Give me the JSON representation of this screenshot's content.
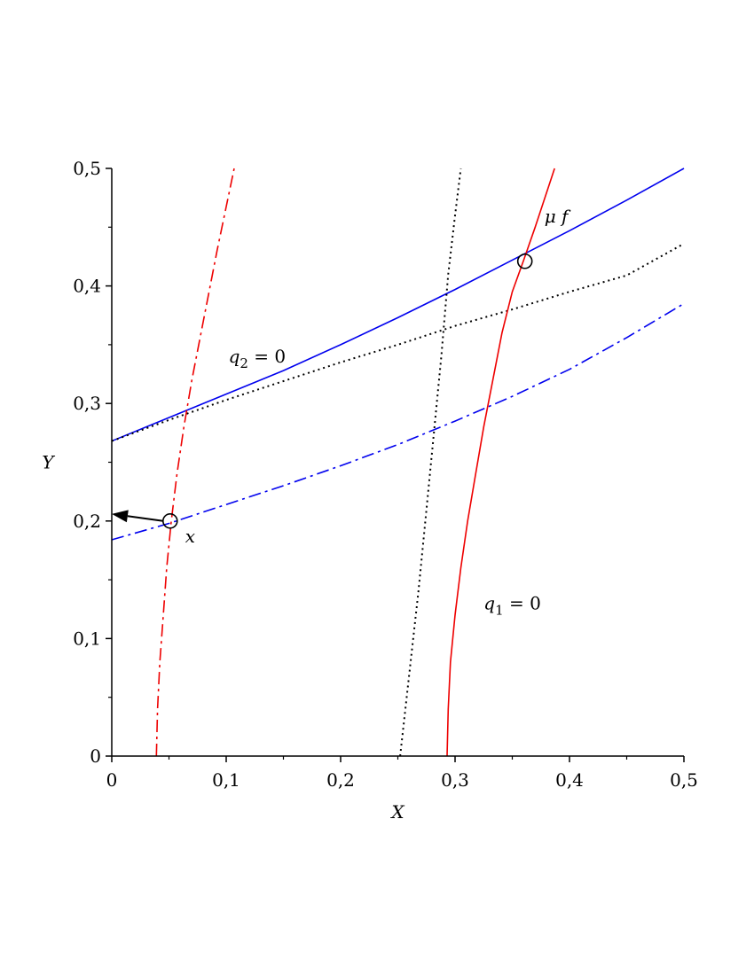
{
  "chart_data": {
    "type": "line",
    "xlabel": "X",
    "ylabel": "Y",
    "xlim": [
      0,
      0.5
    ],
    "ylim": [
      0,
      0.5
    ],
    "xticks": [
      0,
      0.1,
      0.2,
      0.3,
      0.4,
      0.5
    ],
    "yticks": [
      0,
      0.1,
      0.2,
      0.3,
      0.4,
      0.5
    ],
    "xtick_labels": [
      "0",
      "0,1",
      "0,2",
      "0,3",
      "0,4",
      "0,5"
    ],
    "ytick_labels": [
      "0",
      "0,1",
      "0,2",
      "0,3",
      "0,4",
      "0,5"
    ],
    "grid": false,
    "series": [
      {
        "color": "#0000ee",
        "dash": "solid",
        "x": [
          0,
          0.05,
          0.1,
          0.15,
          0.2,
          0.25,
          0.3,
          0.35,
          0.4,
          0.45,
          0.5
        ],
        "y": [
          0.268,
          0.288,
          0.308,
          0.328,
          0.35,
          0.373,
          0.397,
          0.422,
          0.447,
          0.473,
          0.5
        ]
      },
      {
        "color": "#0000ee",
        "dash": "dashdot",
        "x": [
          0,
          0.05,
          0.1,
          0.15,
          0.2,
          0.25,
          0.3,
          0.35,
          0.4,
          0.45,
          0.5
        ],
        "y": [
          0.184,
          0.198,
          0.214,
          0.23,
          0.247,
          0.265,
          0.285,
          0.306,
          0.329,
          0.356,
          0.385
        ]
      },
      {
        "color": "#000000",
        "dash": "dotted",
        "x": [
          0,
          0.05,
          0.1,
          0.15,
          0.2,
          0.25,
          0.3,
          0.35,
          0.4,
          0.45,
          0.5
        ],
        "y": [
          0.268,
          0.286,
          0.303,
          0.319,
          0.335,
          0.35,
          0.366,
          0.38,
          0.395,
          0.409,
          0.436
        ]
      },
      {
        "color": "#ee0000",
        "dash": "solid",
        "x": [
          0.293,
          0.294,
          0.296,
          0.3,
          0.305,
          0.311,
          0.318,
          0.325,
          0.333,
          0.341,
          0.35,
          0.36,
          0.37,
          0.387
        ],
        "y": [
          0.0,
          0.04,
          0.08,
          0.12,
          0.16,
          0.2,
          0.24,
          0.28,
          0.32,
          0.36,
          0.395,
          0.422,
          0.45,
          0.5
        ]
      },
      {
        "color": "#ee0000",
        "dash": "dashdot",
        "x": [
          0.039,
          0.04,
          0.042,
          0.045,
          0.048,
          0.052,
          0.057,
          0.063,
          0.07,
          0.08,
          0.092,
          0.107
        ],
        "y": [
          0.0,
          0.04,
          0.08,
          0.12,
          0.16,
          0.2,
          0.24,
          0.28,
          0.32,
          0.37,
          0.43,
          0.5
        ]
      },
      {
        "color": "#000000",
        "dash": "dotted",
        "x": [
          0.252,
          0.26,
          0.268,
          0.275,
          0.282,
          0.288,
          0.294,
          0.3,
          0.305
        ],
        "y": [
          0.0,
          0.07,
          0.14,
          0.21,
          0.28,
          0.34,
          0.41,
          0.46,
          0.5
        ]
      }
    ],
    "points": [
      {
        "x": 0.051,
        "y": 0.2,
        "label": "x"
      },
      {
        "x": 0.361,
        "y": 0.421,
        "label": "μ f"
      }
    ],
    "arrow": {
      "from": [
        0.051,
        0.2
      ],
      "to": [
        0.0,
        0.206
      ]
    },
    "annotations": [
      {
        "text_main": "q",
        "text_sub": "2",
        "text_rest": " = 0",
        "x": 0.102,
        "y": 0.34
      },
      {
        "text_main": "q",
        "text_sub": "1",
        "text_rest": " = 0",
        "x": 0.325,
        "y": 0.13
      }
    ],
    "colors": {
      "blue": "#0000ee",
      "red": "#ee0000",
      "black": "#000000"
    }
  }
}
